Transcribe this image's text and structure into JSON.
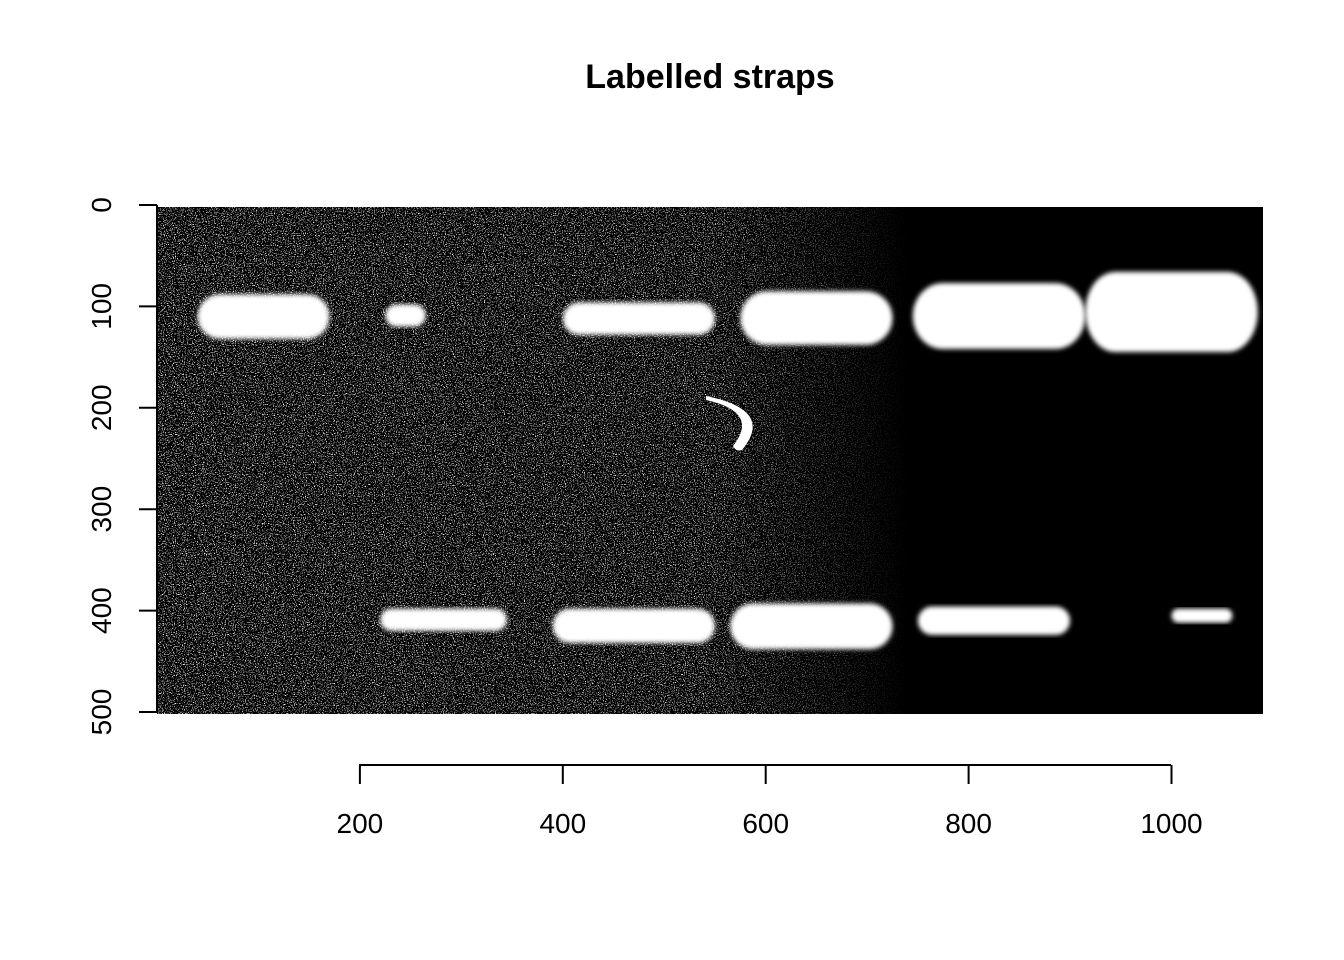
{
  "title": "Labelled straps",
  "chart_data": {
    "type": "image",
    "title": "Labelled straps",
    "xlabel": "",
    "ylabel": "",
    "x_ticks": [
      200,
      400,
      600,
      800,
      1000
    ],
    "y_ticks": [
      0,
      100,
      200,
      300,
      400,
      500
    ],
    "xlim": [
      0,
      1090
    ],
    "ylim": [
      500,
      0
    ],
    "bands": [
      {
        "x0": 40,
        "x1": 170,
        "y0": 88,
        "y1": 132
      },
      {
        "x0": 225,
        "x1": 265,
        "y0": 98,
        "y1": 120
      },
      {
        "x0": 400,
        "x1": 550,
        "y0": 96,
        "y1": 128
      },
      {
        "x0": 575,
        "x1": 725,
        "y0": 85,
        "y1": 138
      },
      {
        "x0": 745,
        "x1": 915,
        "y0": 77,
        "y1": 142
      },
      {
        "x0": 915,
        "x1": 1085,
        "y0": 66,
        "y1": 145
      },
      {
        "x0": 220,
        "x1": 345,
        "y0": 398,
        "y1": 420
      },
      {
        "x0": 390,
        "x1": 550,
        "y0": 398,
        "y1": 432
      },
      {
        "x0": 565,
        "x1": 725,
        "y0": 393,
        "y1": 438
      },
      {
        "x0": 750,
        "x1": 900,
        "y0": 396,
        "y1": 424
      },
      {
        "x0": 1000,
        "x1": 1060,
        "y0": 398,
        "y1": 412
      }
    ]
  },
  "colors": {
    "background": "#000000",
    "band": "#ffffff"
  }
}
